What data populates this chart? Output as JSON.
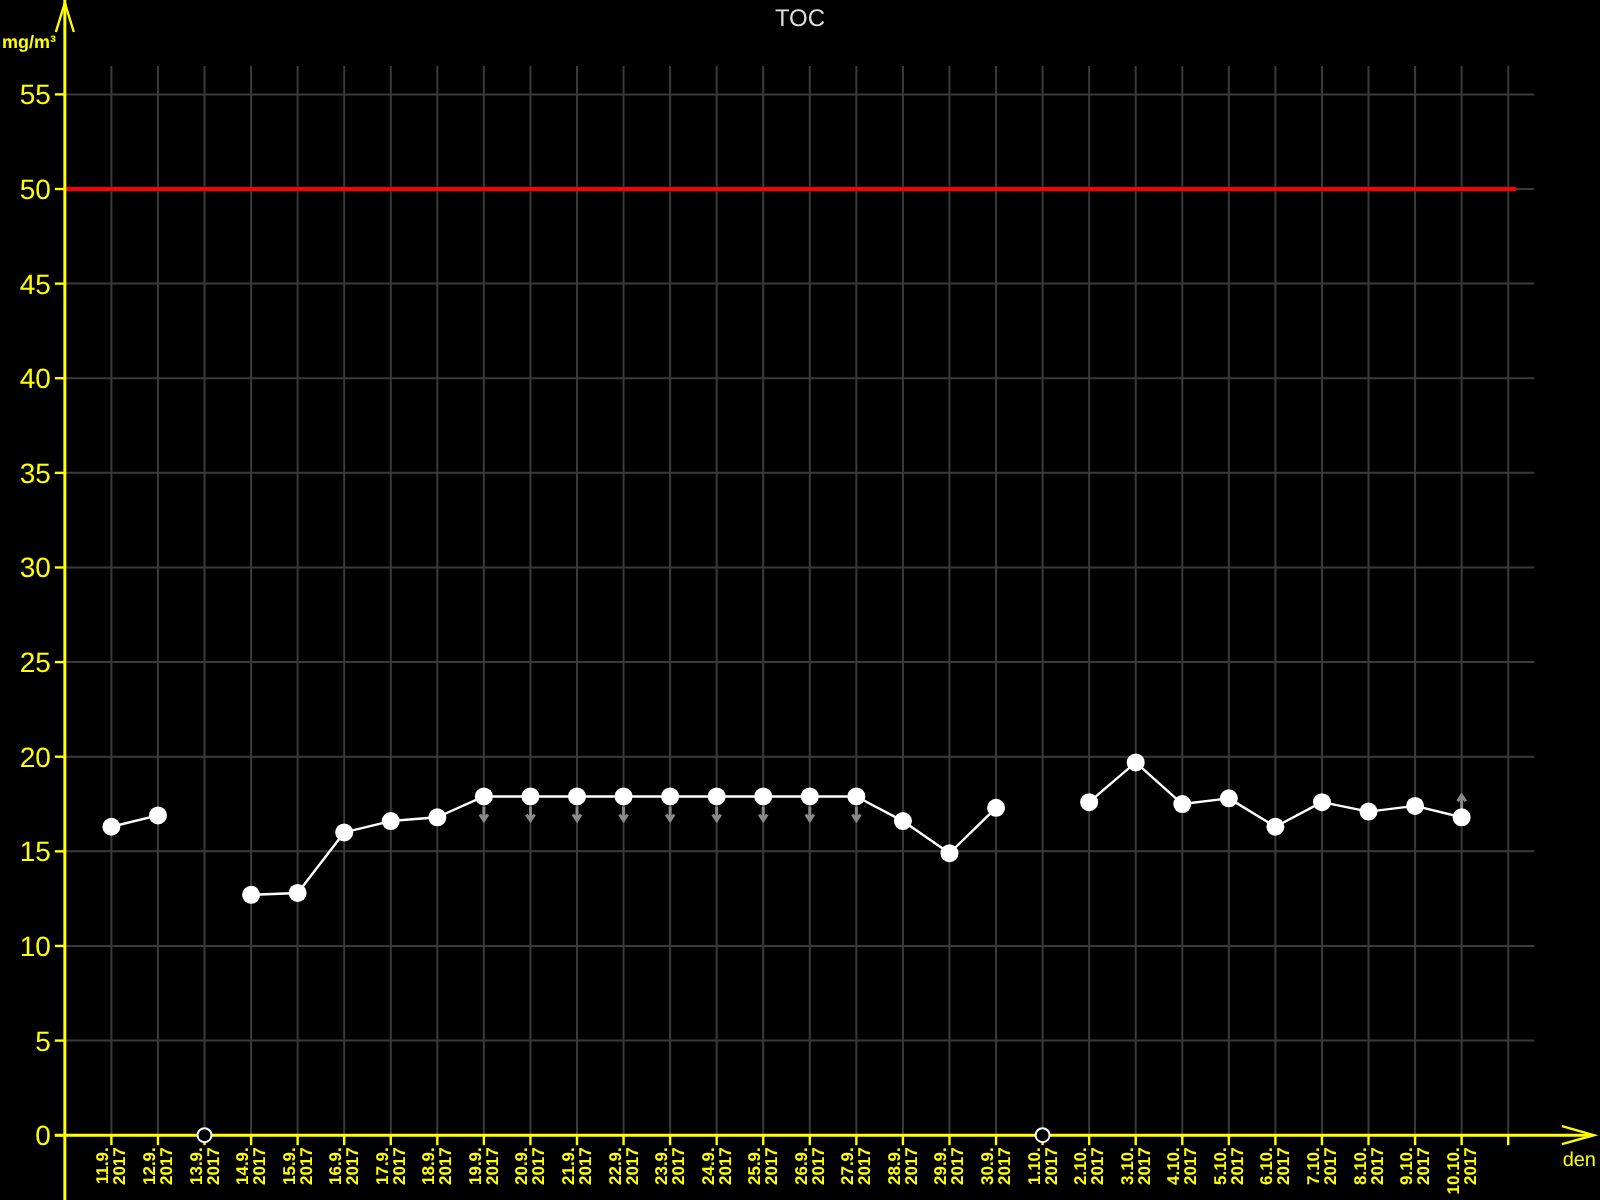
{
  "chart_data": {
    "type": "line",
    "title": "TOC",
    "xlabel": "den",
    "ylabel": "mg/m³",
    "categories": [
      "11.9.2017",
      "12.9.2017",
      "13.9.2017",
      "14.9.2017",
      "15.9.2017",
      "16.9.2017",
      "17.9.2017",
      "18.9.2017",
      "19.9.2017",
      "20.9.2017",
      "21.9.2017",
      "22.9.2017",
      "23.9.2017",
      "24.9.2017",
      "25.9.2017",
      "26.9.2017",
      "27.9.2017",
      "28.9.2017",
      "29.9.2017",
      "30.9.2017",
      "1.10.2017",
      "2.10.2017",
      "3.10.2017",
      "4.10.2017",
      "5.10.2017",
      "6.10.2017",
      "7.10.2017",
      "8.10.2017",
      "9.10.2017",
      "10.10.2017",
      null
    ],
    "series": [
      {
        "color": "#ffffff",
        "values": [
          16.3,
          16.9,
          null,
          12.7,
          12.8,
          16.0,
          16.6,
          16.8,
          17.9,
          17.9,
          17.9,
          17.9,
          17.9,
          17.9,
          17.9,
          17.9,
          17.9,
          16.6,
          14.9,
          17.3,
          null,
          17.6,
          19.7,
          17.5,
          17.8,
          16.3,
          17.6,
          17.1,
          17.4,
          16.8,
          null
        ]
      }
    ],
    "ylim": [
      0,
      56.5
    ],
    "yticks": [
      0,
      5,
      10,
      15,
      20,
      25,
      30,
      35,
      40,
      45,
      50,
      55
    ],
    "grid": true,
    "marker": "circle",
    "ref_lines": [
      {
        "axis": "y",
        "value": 50,
        "color": "#ff0000"
      }
    ]
  }
}
